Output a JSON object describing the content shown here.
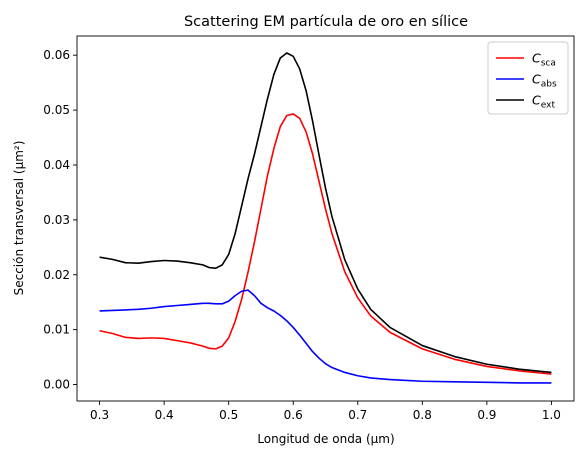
{
  "chart_data": {
    "type": "line",
    "title": "Scattering EM partícula de oro en sílice",
    "xlabel": "Longitud de onda (μm)",
    "ylabel": "Sección transversal (μm²)",
    "xlim": [
      0.265,
      1.035
    ],
    "ylim": [
      -0.003,
      0.0635
    ],
    "xticks": [
      "0.3",
      "0.4",
      "0.5",
      "0.6",
      "0.7",
      "0.8",
      "0.9",
      "1.0"
    ],
    "yticks": [
      "0.00",
      "0.01",
      "0.02",
      "0.03",
      "0.04",
      "0.05",
      "0.06"
    ],
    "grid": false,
    "legend_position": "top-right",
    "x": [
      0.3,
      0.32,
      0.34,
      0.36,
      0.38,
      0.4,
      0.42,
      0.44,
      0.46,
      0.47,
      0.48,
      0.49,
      0.5,
      0.51,
      0.52,
      0.53,
      0.54,
      0.55,
      0.56,
      0.57,
      0.58,
      0.59,
      0.6,
      0.61,
      0.62,
      0.63,
      0.64,
      0.65,
      0.66,
      0.68,
      0.7,
      0.72,
      0.75,
      0.8,
      0.85,
      0.9,
      0.95,
      1.0
    ],
    "series": [
      {
        "name": "C",
        "sub": "sca",
        "color": "#ff0000",
        "values": [
          0.0098,
          0.0093,
          0.0086,
          0.0084,
          0.0085,
          0.0084,
          0.008,
          0.0076,
          0.007,
          0.0066,
          0.0065,
          0.007,
          0.0085,
          0.0115,
          0.0155,
          0.0205,
          0.026,
          0.032,
          0.038,
          0.043,
          0.047,
          0.049,
          0.0493,
          0.0485,
          0.046,
          0.042,
          0.037,
          0.032,
          0.0275,
          0.0205,
          0.0158,
          0.0125,
          0.0095,
          0.0065,
          0.0046,
          0.0033,
          0.0025,
          0.0019
        ]
      },
      {
        "name": "C",
        "sub": "abs",
        "color": "#0000ff",
        "values": [
          0.0134,
          0.0135,
          0.0136,
          0.0137,
          0.0139,
          0.0142,
          0.0144,
          0.0146,
          0.0148,
          0.0148,
          0.0147,
          0.0147,
          0.0152,
          0.0162,
          0.017,
          0.0172,
          0.0162,
          0.0148,
          0.014,
          0.0134,
          0.0126,
          0.0116,
          0.0104,
          0.009,
          0.0075,
          0.006,
          0.0048,
          0.0038,
          0.0031,
          0.0022,
          0.0016,
          0.0012,
          0.0009,
          0.0006,
          0.0005,
          0.0004,
          0.0003,
          0.0003
        ]
      },
      {
        "name": "C",
        "sub": "ext",
        "color": "#000000",
        "values": [
          0.0232,
          0.0228,
          0.0222,
          0.0221,
          0.0224,
          0.0226,
          0.0225,
          0.0222,
          0.0218,
          0.0213,
          0.0212,
          0.0218,
          0.0237,
          0.0275,
          0.0325,
          0.0375,
          0.042,
          0.047,
          0.052,
          0.0565,
          0.0595,
          0.0604,
          0.0598,
          0.0575,
          0.0535,
          0.048,
          0.0418,
          0.0358,
          0.0306,
          0.0227,
          0.0174,
          0.0137,
          0.0104,
          0.0071,
          0.0051,
          0.0037,
          0.0028,
          0.0022
        ]
      }
    ]
  }
}
